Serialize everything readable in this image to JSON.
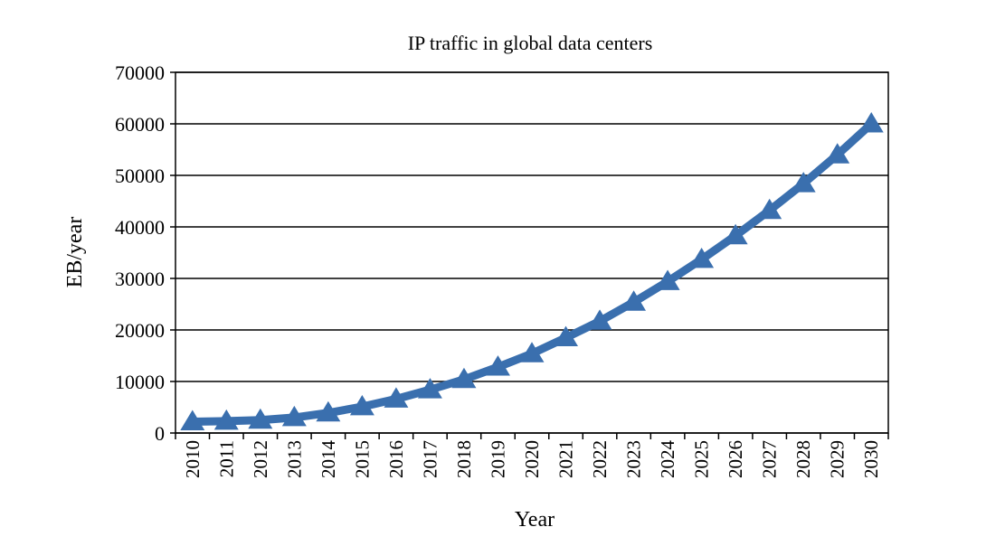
{
  "chart_data": {
    "type": "line",
    "title": "IP traffic in global data centers",
    "xlabel": "Year",
    "ylabel": "EB/year",
    "categories": [
      "2010",
      "2011",
      "2012",
      "2013",
      "2014",
      "2015",
      "2016",
      "2017",
      "2018",
      "2019",
      "2020",
      "2021",
      "2022",
      "2023",
      "2024",
      "2025",
      "2026",
      "2027",
      "2028",
      "2029",
      "2030"
    ],
    "series": [
      {
        "name": "IP traffic",
        "color": "#3A6FAE",
        "marker": "triangle",
        "values": [
          2200,
          2300,
          2500,
          3000,
          3900,
          5100,
          6600,
          8400,
          10400,
          12800,
          15400,
          18500,
          21700,
          25400,
          29400,
          33700,
          38300,
          43200,
          48400,
          54000,
          60000
        ]
      }
    ],
    "ylim": [
      0,
      70000
    ],
    "yticks": [
      "0",
      "10000",
      "20000",
      "30000",
      "40000",
      "50000",
      "60000",
      "70000"
    ],
    "grid": "horizontal"
  }
}
